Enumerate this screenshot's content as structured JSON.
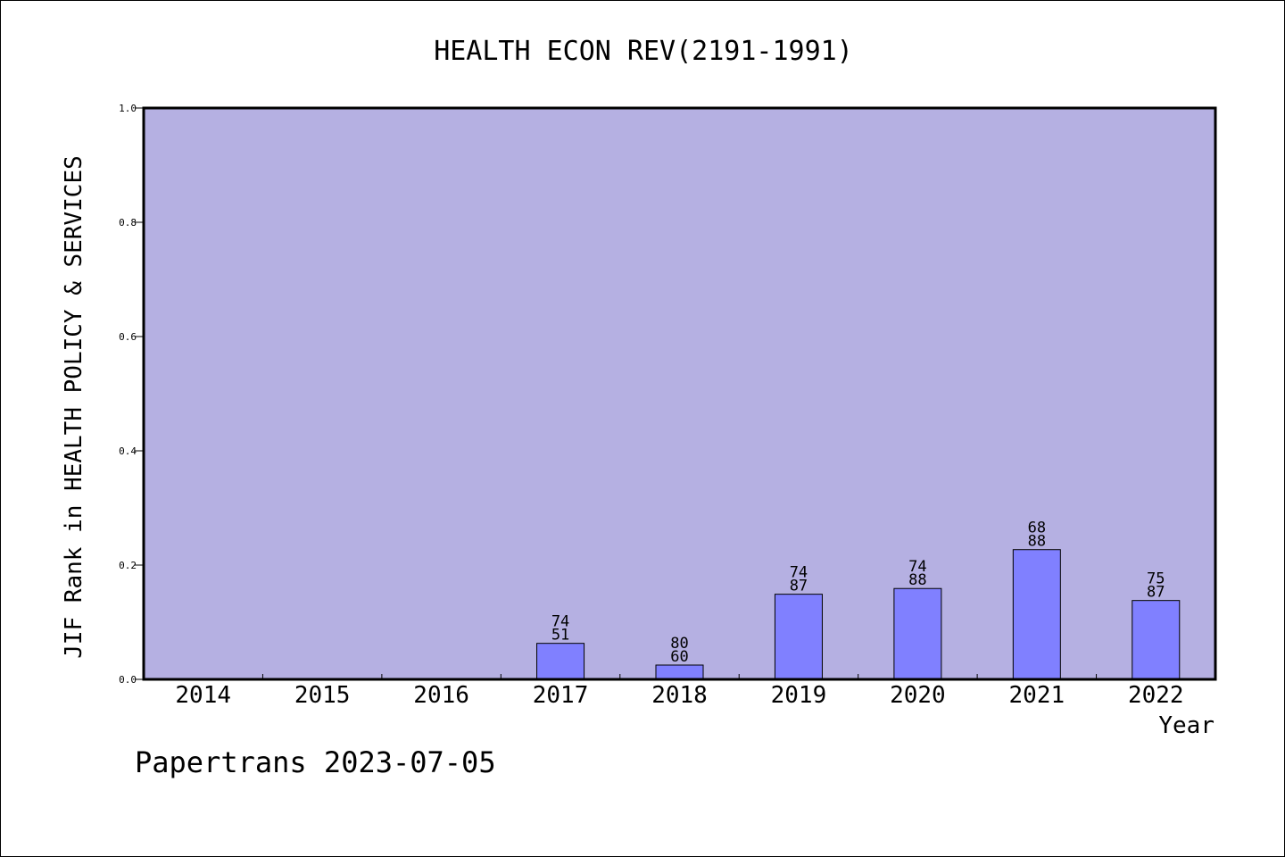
{
  "chart_data": {
    "type": "bar",
    "title": "HEALTH ECON REV(2191-1991)",
    "xlabel": "Year",
    "ylabel": "JIF Rank in HEALTH POLICY & SERVICES",
    "ylim": [
      0,
      1.0
    ],
    "yticks": [
      "0.0",
      "0.2",
      "0.4",
      "0.6",
      "0.8",
      "1.0"
    ],
    "categories": [
      "2014",
      "2015",
      "2016",
      "2017",
      "2018",
      "2019",
      "2020",
      "2021",
      "2022"
    ],
    "values": [
      null,
      null,
      null,
      0.063,
      0.025,
      0.149,
      0.159,
      0.227,
      0.138
    ],
    "rank": [
      null,
      null,
      null,
      "74",
      "80",
      "74",
      "74",
      "68",
      "75"
    ],
    "total": [
      null,
      null,
      null,
      "51",
      "60",
      "87",
      "88",
      "88",
      "87"
    ],
    "grid": false,
    "colors": {
      "plot_bg": "#b5b0e2",
      "bar": "#8080ff",
      "axis": "#000000"
    }
  },
  "footer": {
    "credit": "Papertrans 2023-07-05"
  }
}
